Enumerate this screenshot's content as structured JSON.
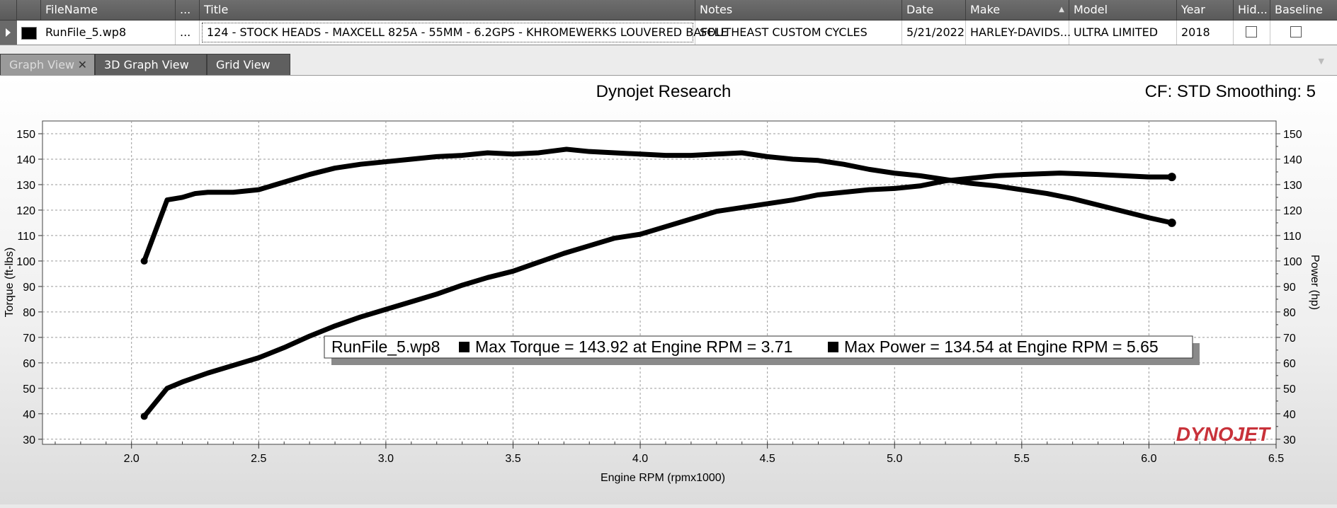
{
  "grid": {
    "headers": {
      "filename": "FileName",
      "ellipsis": "...",
      "title": "Title",
      "notes": "Notes",
      "date": "Date",
      "make": "Make",
      "model": "Model",
      "year": "Year",
      "hidden": "Hid...",
      "baseline": "Baseline"
    },
    "row": {
      "color": "#000000",
      "filename": "RunFile_5.wp8",
      "ellipsis": "...",
      "title": "124 - STOCK HEADS - MAXCELL 825A - 55MM - 6.2GPS - KHROMEWERKS LOUVERED BAFFLE",
      "notes": "SOUTHEAST CUSTOM CYCLES",
      "date": "5/21/2022",
      "make": "HARLEY-DAVIDS...",
      "model": "ULTRA LIMITED",
      "year": "2018",
      "hidden_checked": false,
      "baseline_checked": false
    }
  },
  "tabs": [
    {
      "label": "Graph View",
      "active": true
    },
    {
      "label": "3D Graph View",
      "active": false
    },
    {
      "label": "Grid View",
      "active": false
    }
  ],
  "chart": {
    "title": "Dynojet Research",
    "correction": "CF: STD Smoothing: 5",
    "brand_logo": "DYNOJET",
    "legend": {
      "file": "RunFile_5.wp8",
      "torque_text": "Max Torque = 143.92 at Engine RPM = 3.71",
      "power_text": "Max Power = 134.54 at Engine RPM = 5.65"
    }
  },
  "chart_data": {
    "type": "line",
    "title": "Dynojet Research",
    "xlabel": "Engine RPM (rpmx1000)",
    "ylabel": "Torque (ft-lbs)",
    "y2label": "Power (hp)",
    "xlim": [
      1.65,
      6.5
    ],
    "ylim": [
      28,
      155
    ],
    "y2lim": [
      28,
      155
    ],
    "x_ticks": [
      2.0,
      2.5,
      3.0,
      3.5,
      4.0,
      4.5,
      5.0,
      5.5,
      6.0,
      6.5
    ],
    "y_ticks": [
      30,
      40,
      50,
      60,
      70,
      80,
      90,
      100,
      110,
      120,
      130,
      140,
      150
    ],
    "grid": true,
    "line_color": "#000000",
    "series": [
      {
        "name": "Torque",
        "axis": "left",
        "x": [
          2.05,
          2.14,
          2.2,
          2.25,
          2.3,
          2.4,
          2.5,
          2.6,
          2.7,
          2.8,
          2.9,
          3.0,
          3.1,
          3.2,
          3.3,
          3.4,
          3.5,
          3.6,
          3.71,
          3.8,
          3.9,
          4.0,
          4.1,
          4.2,
          4.3,
          4.4,
          4.5,
          4.6,
          4.7,
          4.8,
          4.9,
          5.0,
          5.1,
          5.2,
          5.3,
          5.4,
          5.5,
          5.6,
          5.7,
          5.8,
          5.9,
          6.0,
          6.09
        ],
        "y": [
          100,
          124,
          125,
          126.5,
          127,
          127,
          128,
          131,
          134,
          136.5,
          138,
          139,
          140,
          141,
          141.5,
          142.5,
          142,
          142.5,
          143.9,
          143,
          142.5,
          142,
          141.5,
          141.5,
          142,
          142.5,
          141,
          140,
          139.5,
          138,
          136,
          134.5,
          133.5,
          132,
          130.5,
          129.5,
          128,
          126.5,
          124.5,
          122,
          119.5,
          117,
          115
        ]
      },
      {
        "name": "Power",
        "axis": "right",
        "x": [
          2.05,
          2.14,
          2.2,
          2.3,
          2.4,
          2.5,
          2.6,
          2.7,
          2.8,
          2.9,
          3.0,
          3.1,
          3.2,
          3.3,
          3.4,
          3.5,
          3.6,
          3.7,
          3.8,
          3.9,
          4.0,
          4.1,
          4.2,
          4.3,
          4.4,
          4.5,
          4.6,
          4.7,
          4.8,
          4.9,
          5.0,
          5.1,
          5.2,
          5.3,
          5.4,
          5.5,
          5.65,
          5.8,
          5.9,
          6.0,
          6.09
        ],
        "y": [
          39,
          50,
          52.5,
          56,
          59,
          62,
          66,
          70.5,
          74.5,
          78,
          81,
          84,
          87,
          90.5,
          93.5,
          96,
          99.5,
          103,
          106,
          109,
          110.5,
          113.5,
          116.5,
          119.5,
          121,
          122.5,
          124,
          126,
          127,
          128,
          128.5,
          129.5,
          131.5,
          132.5,
          133.5,
          134,
          134.54,
          134,
          133.5,
          133,
          133
        ]
      }
    ]
  }
}
